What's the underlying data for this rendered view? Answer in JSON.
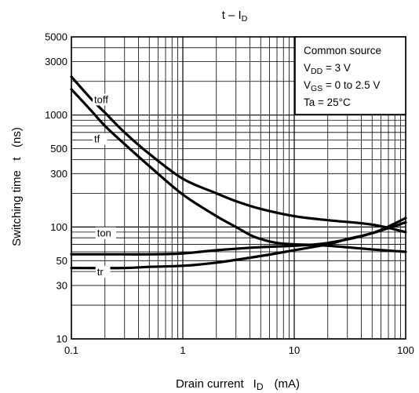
{
  "chart_data": {
    "type": "line",
    "title": "t – ID",
    "title_main": "t – I",
    "title_sub": "D",
    "xlabel": "Drain current",
    "xlabel_symbol": "I",
    "xlabel_sub": "D",
    "xlabel_unit": "(mA)",
    "ylabel": "Switching time   t   (ns)",
    "xscale": "log",
    "yscale": "log",
    "xlim": [
      0.1,
      100
    ],
    "ylim": [
      10,
      5000
    ],
    "grid": true,
    "xtick_values": [
      0.1,
      1,
      10,
      100
    ],
    "xtick_labels": [
      "0.1",
      "1",
      "10",
      "100"
    ],
    "ytick_values": [
      10,
      30,
      50,
      100,
      300,
      500,
      1000,
      3000,
      5000
    ],
    "ytick_labels": [
      "10",
      "30",
      "50",
      "100",
      "300",
      "500",
      "1000",
      "3000",
      "5000"
    ],
    "legend_box": {
      "position": "top-right",
      "lines": [
        {
          "main": "Common source",
          "sub": "",
          "rest": ""
        },
        {
          "main": "V",
          "sub": "DD",
          "rest": " = 3 V"
        },
        {
          "main": "V",
          "sub": "GS",
          "rest": " = 0 to 2.5 V"
        },
        {
          "main": "Ta = 25°C",
          "sub": "",
          "rest": ""
        }
      ]
    },
    "series": [
      {
        "name": "toff",
        "x": [
          0.1,
          0.15,
          0.2,
          0.3,
          0.5,
          1,
          2,
          3,
          5,
          10,
          20,
          50,
          100
        ],
        "y": [
          2200,
          1400,
          1050,
          700,
          450,
          270,
          200,
          170,
          145,
          125,
          115,
          105,
          90
        ]
      },
      {
        "name": "tf",
        "x": [
          0.1,
          0.15,
          0.2,
          0.3,
          0.5,
          1,
          2,
          3,
          4,
          5,
          7,
          10,
          20,
          50,
          100
        ],
        "y": [
          1700,
          1100,
          800,
          550,
          350,
          195,
          125,
          100,
          85,
          78,
          72,
          70,
          68,
          63,
          60
        ]
      },
      {
        "name": "ton",
        "x": [
          0.1,
          0.3,
          0.5,
          1,
          2,
          5,
          10,
          20,
          50,
          100
        ],
        "y": [
          57,
          57,
          57,
          58,
          62,
          66,
          68,
          72,
          88,
          120
        ]
      },
      {
        "name": "tr",
        "x": [
          0.1,
          0.3,
          0.5,
          1,
          2,
          5,
          10,
          20,
          30,
          50,
          100
        ],
        "y": [
          43,
          43,
          44,
          45,
          48,
          55,
          62,
          70,
          78,
          88,
          110
        ]
      }
    ],
    "curve_labels": [
      {
        "series": "toff",
        "text": "toff",
        "x": 0.16,
        "y": 1280
      },
      {
        "series": "tf",
        "text": "tf",
        "x": 0.16,
        "y": 570
      },
      {
        "series": "ton",
        "text": "ton",
        "x": 0.17,
        "y": 82
      },
      {
        "series": "tr",
        "text": "tr",
        "x": 0.17,
        "y": 37
      }
    ]
  }
}
